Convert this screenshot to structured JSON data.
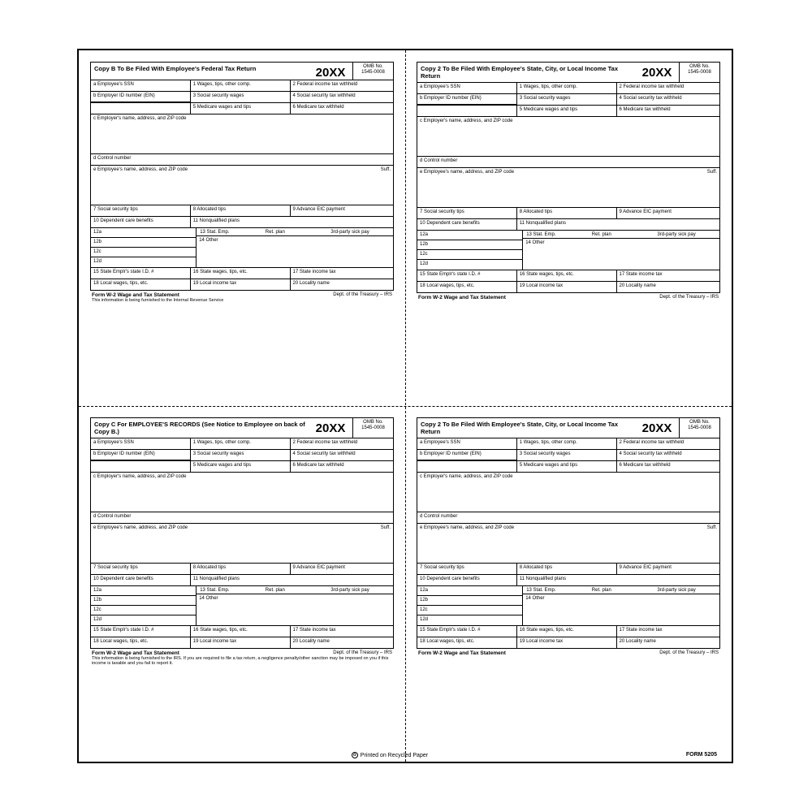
{
  "year": "20XX",
  "omb_label": "OMB No.",
  "omb_no": "1545-0008",
  "form_name": "Form W-2 Wage and Tax Statement",
  "dept": "Dept. of the Treasury – IRS",
  "form_number": "FORM 5205",
  "recycled_text": "Printed on Recycled Paper",
  "quads": [
    {
      "title": "Copy B To Be Filed With Employee's Federal Tax Return",
      "fineprint": "This information is being furnished to the Internal Revenue Service"
    },
    {
      "title": "Copy 2 To Be Filed With Employee's State, City, or Local Income Tax Return",
      "fineprint": ""
    },
    {
      "title": "Copy C For EMPLOYEE'S RECORDS (See Notice to Employee on back of Copy B.)",
      "fineprint": "This information is being furnished to the IRS. If you are required to file a tax return, a negligence penalty/other sanction may be imposed on you if this income is taxable and you fail to report it."
    },
    {
      "title": "Copy 2 To Be Filed With Employee's State, City, or Local Income Tax Return",
      "fineprint": ""
    }
  ],
  "labels": {
    "a": "a Employee's SSN",
    "b": "b Employer ID number (EIN)",
    "c": "c Employer's name, address, and ZIP code",
    "d": "d Control number",
    "e": "e Employee's name, address, and ZIP code",
    "suff": "Suff.",
    "1": "1 Wages, tips, other comp.",
    "2": "2 Federal income tax withheld",
    "3": "3 Social security wages",
    "4": "4 Social security tax withheld",
    "5": "5 Medicare wages and tips",
    "6": "6 Medicare tax withheld",
    "7": "7 Social security tips",
    "8": "8 Allocated tips",
    "9": "9 Advance EIC payment",
    "10": "10 Dependent care benefits",
    "11": "11 Nonqualified plans",
    "12a": "12a",
    "12b": "12b",
    "12c": "12c",
    "12d": "12d",
    "13": "13 Stat. Emp.",
    "ret": "Ret. plan",
    "sick": "3rd-party sick pay",
    "14": "14 Other",
    "15": "15 State   Emplr's state I.D. #",
    "16": "16 State wages, tips, etc.",
    "17": "17 State income tax",
    "18": "18 Local wages, tips, etc.",
    "19": "19 Local income tax",
    "20": "20 Locality name"
  }
}
